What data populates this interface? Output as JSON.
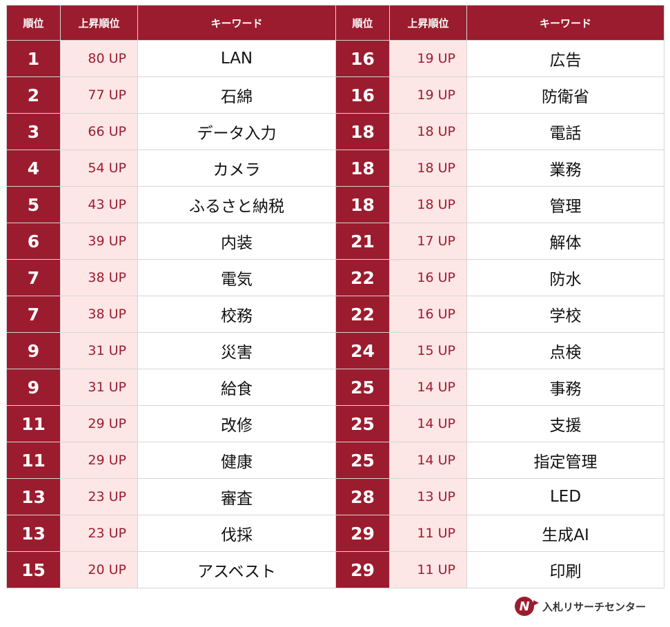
{
  "headers": {
    "rank": "順位",
    "up": "上昇順位",
    "keyword": "キーワード"
  },
  "left": [
    {
      "rank": "1",
      "up": "80 UP",
      "keyword": "LAN"
    },
    {
      "rank": "2",
      "up": "77 UP",
      "keyword": "石綿"
    },
    {
      "rank": "3",
      "up": "66 UP",
      "keyword": "データ入力"
    },
    {
      "rank": "4",
      "up": "54 UP",
      "keyword": "カメラ"
    },
    {
      "rank": "5",
      "up": "43 UP",
      "keyword": "ふるさと納税"
    },
    {
      "rank": "6",
      "up": "39 UP",
      "keyword": "内装"
    },
    {
      "rank": "7",
      "up": "38 UP",
      "keyword": "電気"
    },
    {
      "rank": "7",
      "up": "38 UP",
      "keyword": "校務"
    },
    {
      "rank": "9",
      "up": "31 UP",
      "keyword": "災害"
    },
    {
      "rank": "9",
      "up": "31 UP",
      "keyword": "給食"
    },
    {
      "rank": "11",
      "up": "29 UP",
      "keyword": "改修"
    },
    {
      "rank": "11",
      "up": "29 UP",
      "keyword": "健康"
    },
    {
      "rank": "13",
      "up": "23 UP",
      "keyword": "審査"
    },
    {
      "rank": "13",
      "up": "23 UP",
      "keyword": "伐採"
    },
    {
      "rank": "15",
      "up": "20 UP",
      "keyword": "アスベスト"
    }
  ],
  "right": [
    {
      "rank": "16",
      "up": "19 UP",
      "keyword": "広告"
    },
    {
      "rank": "16",
      "up": "19 UP",
      "keyword": "防衛省"
    },
    {
      "rank": "18",
      "up": "18 UP",
      "keyword": "電話"
    },
    {
      "rank": "18",
      "up": "18 UP",
      "keyword": "業務"
    },
    {
      "rank": "18",
      "up": "18 UP",
      "keyword": "管理"
    },
    {
      "rank": "21",
      "up": "17 UP",
      "keyword": "解体"
    },
    {
      "rank": "22",
      "up": "16 UP",
      "keyword": "防水"
    },
    {
      "rank": "22",
      "up": "16 UP",
      "keyword": "学校"
    },
    {
      "rank": "24",
      "up": "15 UP",
      "keyword": "点検"
    },
    {
      "rank": "25",
      "up": "14 UP",
      "keyword": "事務"
    },
    {
      "rank": "25",
      "up": "14 UP",
      "keyword": "支援"
    },
    {
      "rank": "25",
      "up": "14 UP",
      "keyword": "指定管理"
    },
    {
      "rank": "28",
      "up": "13 UP",
      "keyword": "LED"
    },
    {
      "rank": "29",
      "up": "11 UP",
      "keyword": "生成AI"
    },
    {
      "rank": "29",
      "up": "11 UP",
      "keyword": "印刷"
    }
  ],
  "logo": {
    "mark": "N",
    "text": "入札リサーチセンター"
  },
  "colors": {
    "accent": "#9b1c2e",
    "up_bg": "#fde6e6"
  }
}
